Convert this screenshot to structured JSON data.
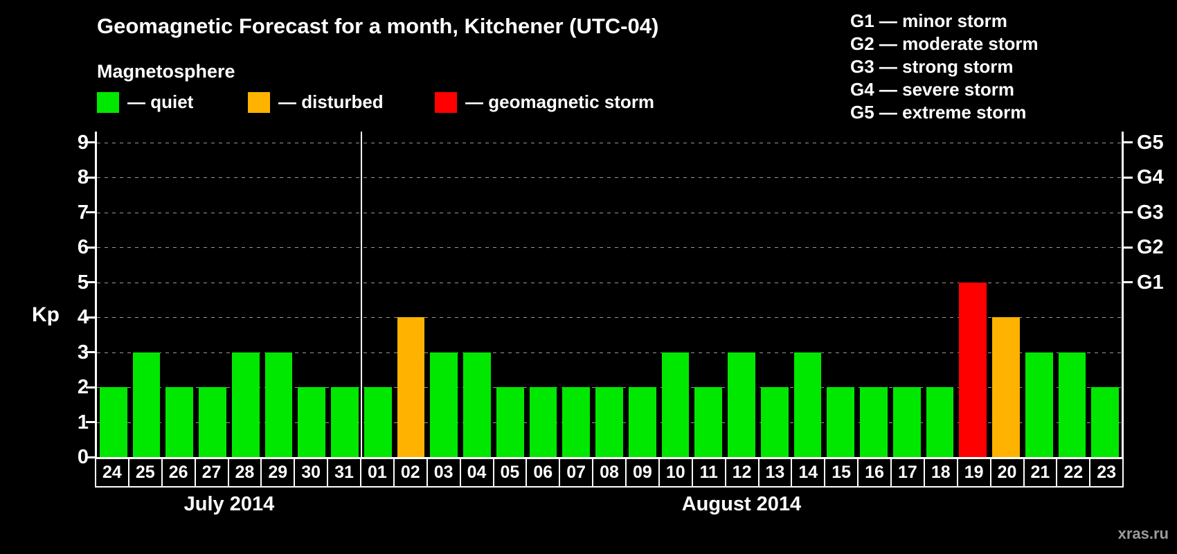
{
  "title": "Geomagnetic Forecast for a month, Kitchener (UTC-04)",
  "subtitle": "Magnetosphere",
  "legend": {
    "items": [
      {
        "label": "— quiet",
        "status": "quiet"
      },
      {
        "label": "— disturbed",
        "status": "disturbed"
      },
      {
        "label": "— geomagnetic storm",
        "status": "storm"
      }
    ]
  },
  "storm_scale_legend": [
    "G1 — minor storm",
    "G2 — moderate storm",
    "G3 — strong storm",
    "G4 — severe storm",
    "G5 — extreme storm"
  ],
  "watermark": "xras.ru",
  "chart_data": {
    "type": "bar",
    "title": "Geomagnetic Forecast for a month, Kitchener (UTC-04)",
    "ylabel": "Kp",
    "ylim": [
      0,
      9
    ],
    "yticks": [
      0,
      1,
      2,
      3,
      4,
      5,
      6,
      7,
      8,
      9
    ],
    "grid": "dashed horizontal",
    "right_axis_labels": [
      {
        "label": "G1",
        "kp": 5
      },
      {
        "label": "G2",
        "kp": 6
      },
      {
        "label": "G3",
        "kp": 7
      },
      {
        "label": "G4",
        "kp": 8
      },
      {
        "label": "G5",
        "kp": 9
      }
    ],
    "categories": [
      "24",
      "25",
      "26",
      "27",
      "28",
      "29",
      "30",
      "31",
      "01",
      "02",
      "03",
      "04",
      "05",
      "06",
      "07",
      "08",
      "09",
      "10",
      "11",
      "12",
      "13",
      "14",
      "15",
      "16",
      "17",
      "18",
      "19",
      "20",
      "21",
      "22",
      "23"
    ],
    "values": [
      2,
      3,
      2,
      2,
      3,
      3,
      2,
      2,
      2,
      4,
      3,
      3,
      2,
      2,
      2,
      2,
      2,
      3,
      2,
      3,
      2,
      3,
      2,
      2,
      2,
      2,
      5,
      4,
      3,
      3,
      2
    ],
    "statuses": [
      "quiet",
      "quiet",
      "quiet",
      "quiet",
      "quiet",
      "quiet",
      "quiet",
      "quiet",
      "quiet",
      "disturbed",
      "quiet",
      "quiet",
      "quiet",
      "quiet",
      "quiet",
      "quiet",
      "quiet",
      "quiet",
      "quiet",
      "quiet",
      "quiet",
      "quiet",
      "quiet",
      "quiet",
      "quiet",
      "quiet",
      "storm",
      "disturbed",
      "quiet",
      "quiet",
      "quiet"
    ],
    "months": [
      {
        "label": "July 2014",
        "start_index": 0,
        "count": 8
      },
      {
        "label": "August 2014",
        "start_index": 8,
        "count": 23
      }
    ],
    "colors": {
      "quiet": "#00e800",
      "disturbed": "#ffb300",
      "storm": "#ff0000"
    }
  }
}
